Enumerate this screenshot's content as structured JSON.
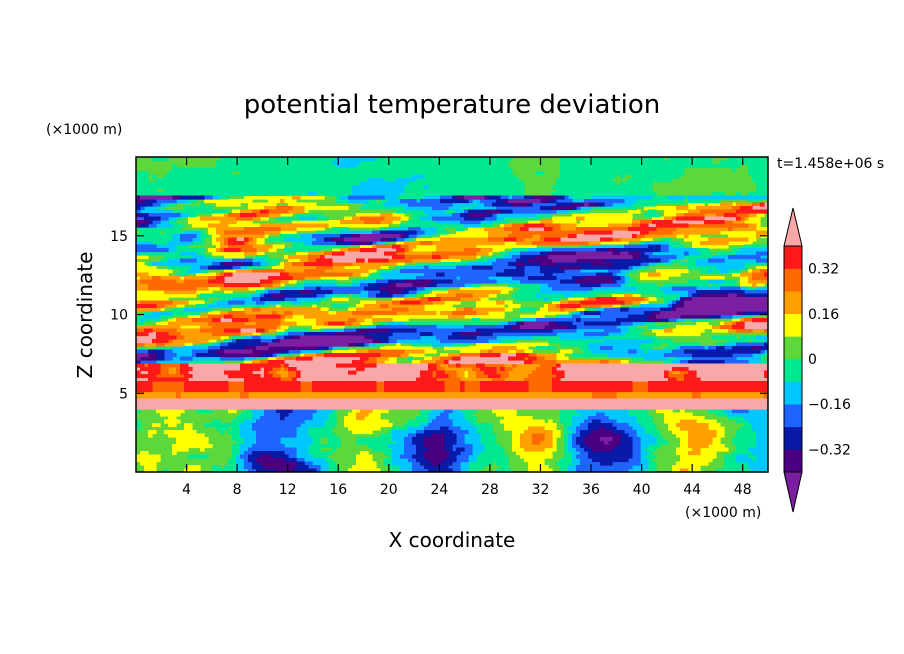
{
  "chart_data": {
    "type": "heatmap",
    "title": "potential temperature deviation",
    "xlabel": "X coordinate",
    "ylabel": "Z coordinate",
    "x_unit": "(×1000 m)",
    "y_unit": "(×1000 m)",
    "time_label": "t=1.458e+06 s",
    "xlim": [
      0,
      50
    ],
    "ylim": [
      0,
      20
    ],
    "x_ticks": [
      4,
      8,
      12,
      16,
      20,
      24,
      28,
      32,
      36,
      40,
      44,
      48
    ],
    "y_ticks": [
      5,
      10,
      15
    ],
    "colorbar": {
      "levels": [
        -0.4,
        -0.32,
        -0.24,
        -0.16,
        -0.08,
        0,
        0.08,
        0.16,
        0.24,
        0.32,
        0.4
      ],
      "tick_labels": [
        "0.32",
        "0.16",
        "0",
        "−0.16",
        "−0.32"
      ],
      "tick_values": [
        0.32,
        0.16,
        0,
        -0.16,
        -0.32
      ],
      "colors": [
        "#7a1fa2",
        "#4b0082",
        "#0a1aa8",
        "#1e64ff",
        "#00c8ff",
        "#00e890",
        "#5cd83a",
        "#ffff00",
        "#ffa000",
        "#ff6a00",
        "#ff1a1a",
        "#f8a8a8"
      ],
      "extend": "both"
    }
  }
}
